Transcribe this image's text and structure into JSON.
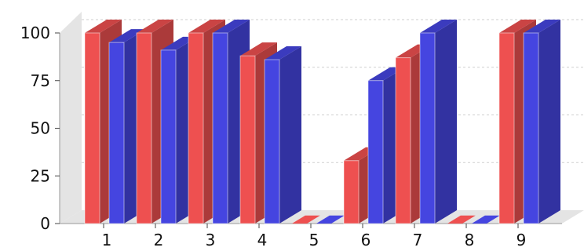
{
  "chart_data": {
    "type": "bar",
    "style": "3d-clustered",
    "categories": [
      "1",
      "2",
      "3",
      "4",
      "5",
      "6",
      "7",
      "8",
      "9"
    ],
    "series": [
      {
        "color": "#ee5050",
        "values": [
          100,
          100,
          100,
          88,
          0,
          33,
          87,
          0,
          100
        ]
      },
      {
        "color": "#4545e0",
        "values": [
          95,
          91,
          100,
          86,
          0,
          75,
          100,
          0,
          100
        ]
      }
    ],
    "yticks": [
      "0",
      "25",
      "50",
      "75",
      "100"
    ],
    "ylim": [
      0,
      100
    ],
    "grid": true,
    "legend": "none"
  }
}
